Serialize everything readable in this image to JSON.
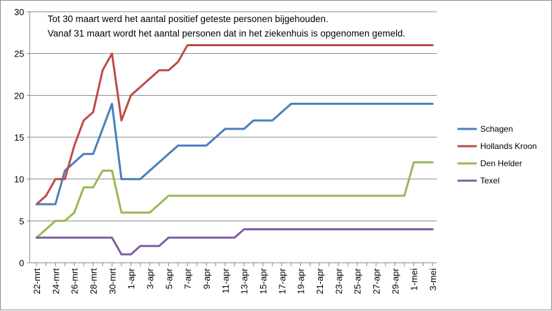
{
  "chart_data": {
    "type": "line",
    "title": "",
    "xlabel": "",
    "ylabel": "",
    "ylim": [
      0,
      30
    ],
    "y_ticks": [
      0,
      5,
      10,
      15,
      20,
      25,
      30
    ],
    "grid": "horizontal",
    "legend_position": "right",
    "annotations": [
      "Tot 30 maart werd het aantal positief geteste personen bijgehouden.",
      "Vanaf 31 maart wordt het aantal personen dat in het ziekenhuis is opgenomen gemeld."
    ],
    "categories": [
      "22-mrt",
      "23-mrt",
      "24-mrt",
      "25-mrt",
      "26-mrt",
      "27-mrt",
      "28-mrt",
      "29-mrt",
      "30-mrt",
      "31-mrt",
      "1-apr",
      "2-apr",
      "3-apr",
      "4-apr",
      "5-apr",
      "6-apr",
      "7-apr",
      "8-apr",
      "9-apr",
      "10-apr",
      "11-apr",
      "12-apr",
      "13-apr",
      "14-apr",
      "15-apr",
      "16-apr",
      "17-apr",
      "18-apr",
      "19-apr",
      "20-apr",
      "21-apr",
      "22-apr",
      "23-apr",
      "24-apr",
      "25-apr",
      "26-apr",
      "27-apr",
      "28-apr",
      "29-apr",
      "30-apr",
      "1-mei",
      "2-mei",
      "3-mei"
    ],
    "tick_labels": [
      "22-mrt",
      "24-mrt",
      "26-mrt",
      "28-mrt",
      "30-mrt",
      "1-apr",
      "3-apr",
      "5-apr",
      "7-apr",
      "9-apr",
      "11-apr",
      "13-apr",
      "15-apr",
      "17-apr",
      "19-apr",
      "21-apr",
      "23-apr",
      "25-apr",
      "27-apr",
      "29-apr",
      "1-mei",
      "3-mei"
    ],
    "series": [
      {
        "name": "Schagen",
        "color": "#4a7ebb",
        "values": [
          7,
          7,
          7,
          11,
          12,
          13,
          13,
          16,
          19,
          10,
          10,
          10,
          11,
          12,
          13,
          14,
          14,
          14,
          14,
          15,
          16,
          16,
          16,
          17,
          17,
          17,
          18,
          19,
          19,
          19,
          19,
          19,
          19,
          19,
          19,
          19,
          19,
          19,
          19,
          19,
          19,
          19,
          19
        ]
      },
      {
        "name": "Hollands Kroon",
        "color": "#be4b48",
        "values": [
          7,
          8,
          10,
          10,
          14,
          17,
          18,
          23,
          25,
          17,
          20,
          21,
          22,
          23,
          23,
          24,
          26,
          26,
          26,
          26,
          26,
          26,
          26,
          26,
          26,
          26,
          26,
          26,
          26,
          26,
          26,
          26,
          26,
          26,
          26,
          26,
          26,
          26,
          26,
          26,
          26,
          26,
          26
        ]
      },
      {
        "name": "Den Helder",
        "color": "#98b954",
        "values": [
          3,
          4,
          5,
          5,
          6,
          9,
          9,
          11,
          11,
          6,
          6,
          6,
          6,
          7,
          8,
          8,
          8,
          8,
          8,
          8,
          8,
          8,
          8,
          8,
          8,
          8,
          8,
          8,
          8,
          8,
          8,
          8,
          8,
          8,
          8,
          8,
          8,
          8,
          8,
          8,
          12,
          12,
          12
        ]
      },
      {
        "name": "Texel",
        "color": "#7d60a0",
        "values": [
          3,
          3,
          3,
          3,
          3,
          3,
          3,
          3,
          3,
          1,
          1,
          2,
          2,
          2,
          3,
          3,
          3,
          3,
          3,
          3,
          3,
          3,
          4,
          4,
          4,
          4,
          4,
          4,
          4,
          4,
          4,
          4,
          4,
          4,
          4,
          4,
          4,
          4,
          4,
          4,
          4,
          4,
          4
        ]
      }
    ]
  }
}
